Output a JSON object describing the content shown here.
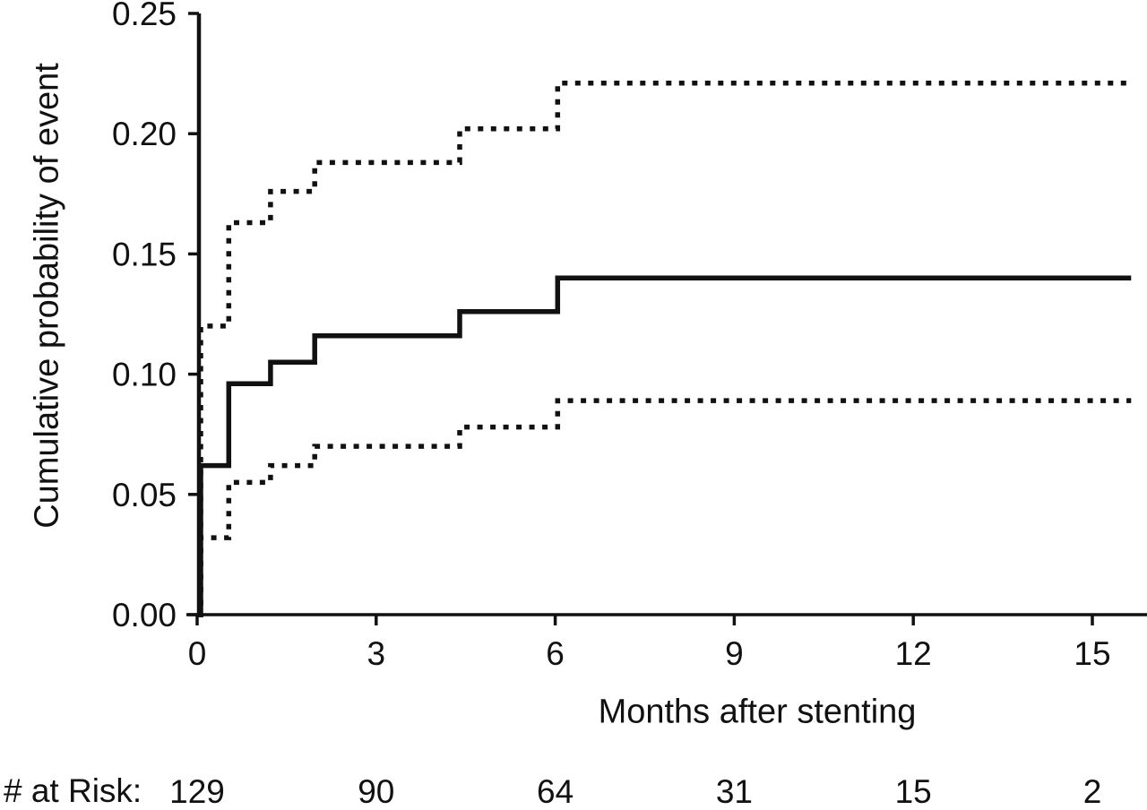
{
  "figure": {
    "background_color": "#ffffff",
    "ink_color": "#111111"
  },
  "chart_data": {
    "type": "line",
    "variant": "kaplan-meier step curve with dotted 95% confidence bounds",
    "title": "",
    "xlabel": "Months after stenting",
    "ylabel": "Cumulative probability of event",
    "xlim": [
      0,
      15.9
    ],
    "ylim": [
      0,
      0.25
    ],
    "grid": false,
    "x_ticks": {
      "values": [
        0,
        3,
        6,
        9,
        12,
        15
      ],
      "labels": [
        "0",
        "3",
        "6",
        "9",
        "12",
        "15"
      ]
    },
    "y_ticks": {
      "values": [
        0,
        0.05,
        0.1,
        0.15,
        0.2,
        0.25
      ],
      "labels": [
        "0.00",
        "0.05",
        "0.10",
        "0.15",
        "0.20",
        "0.25"
      ]
    },
    "step_start_month": 0,
    "step_end_month": 15.65,
    "series": [
      {
        "name": "cumulative probability estimate",
        "line_style": "solid",
        "event_months": [
          0.06,
          0.53,
          1.23,
          1.97,
          4.4,
          6.04
        ],
        "values": [
          0.062,
          0.096,
          0.105,
          0.116,
          0.126,
          0.14
        ]
      },
      {
        "name": "upper confidence bound",
        "line_style": "dotted",
        "event_months": [
          0.06,
          0.53,
          1.23,
          1.97,
          4.4,
          6.04
        ],
        "values": [
          0.12,
          0.163,
          0.176,
          0.188,
          0.202,
          0.221
        ]
      },
      {
        "name": "lower confidence bound",
        "line_style": "dotted",
        "event_months": [
          0.06,
          0.53,
          1.23,
          1.97,
          4.4,
          6.04
        ],
        "values": [
          0.032,
          0.055,
          0.062,
          0.07,
          0.078,
          0.089
        ]
      }
    ]
  },
  "risk_table": {
    "label": "# at Risk:",
    "months": [
      0,
      3,
      6,
      9,
      12,
      15
    ],
    "counts": [
      "129",
      "90",
      "64",
      "31",
      "15",
      "2"
    ]
  }
}
